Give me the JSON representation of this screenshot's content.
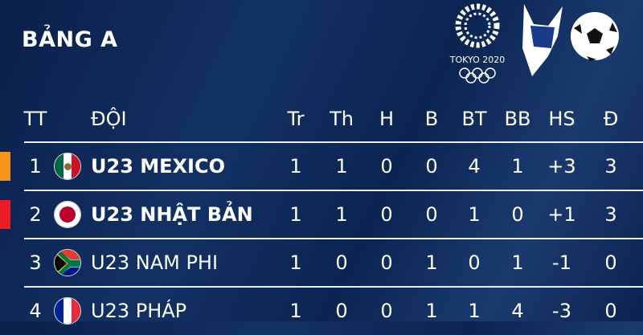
{
  "title": "BẢNG A",
  "logo": {
    "text": "TOKYO 2020"
  },
  "headers": [
    "TT",
    "ĐỘI",
    "Tr",
    "Th",
    "H",
    "B",
    "BT",
    "BB",
    "HS",
    "Đ"
  ],
  "rows": [
    {
      "rank": "1",
      "team": "U23 MEXICO",
      "flag": "mexico",
      "marker": "#f7941d",
      "bold": true,
      "stats": [
        "1",
        "1",
        "0",
        "0",
        "4",
        "1",
        "+3",
        "3"
      ]
    },
    {
      "rank": "2",
      "team": "U23 NHẬT BẢN",
      "flag": "japan",
      "marker": "#ed1c24",
      "bold": true,
      "stats": [
        "1",
        "1",
        "0",
        "0",
        "1",
        "0",
        "+1",
        "3"
      ]
    },
    {
      "rank": "3",
      "team": "U23 NAM PHI",
      "flag": "south-africa",
      "marker": null,
      "bold": false,
      "stats": [
        "1",
        "0",
        "0",
        "1",
        "0",
        "1",
        "-1",
        "0"
      ]
    },
    {
      "rank": "4",
      "team": "U23 PHÁP",
      "flag": "france",
      "marker": null,
      "bold": false,
      "stats": [
        "1",
        "0",
        "0",
        "1",
        "1",
        "4",
        "-3",
        "0"
      ]
    }
  ]
}
